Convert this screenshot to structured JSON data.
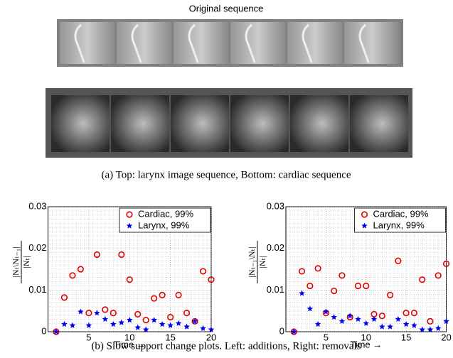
{
  "header": {
    "title": "Original sequence"
  },
  "caption_a": "(a) Top: larynx image sequence, Bottom: cardiac sequence",
  "caption_b": "(b) Slow support change plots. Left: additions, Right: removals",
  "chart_data": [
    {
      "type": "scatter",
      "xlabel": "Time →",
      "ylabel_numerator": "|Nₜ\\Nₜ₋₁|",
      "ylabel_denominator": "|Nₜ|",
      "x": [
        1,
        2,
        3,
        4,
        5,
        6,
        7,
        8,
        9,
        10,
        11,
        12,
        13,
        14,
        15,
        16,
        17,
        18,
        19,
        20
      ],
      "series": [
        {
          "name": "Cardiac, 99%",
          "color": "#e00000",
          "marker": "circle",
          "values": [
            0,
            0.0082,
            0.0135,
            0.015,
            0.0045,
            0.0185,
            0.0053,
            0.0045,
            0.0185,
            0.0125,
            0.0042,
            0.0028,
            0.008,
            0.0088,
            0.0035,
            0.0088,
            0.0045,
            0.0025,
            0.0145,
            0.0125
          ]
        },
        {
          "name": "Larynx, 99%",
          "color": "#0000ee",
          "marker": "star",
          "values": [
            0,
            0.0018,
            0.0015,
            0.0048,
            0.0015,
            0.0045,
            0.003,
            0.0018,
            0.0022,
            0.0028,
            0.001,
            0.0005,
            0.0028,
            0.0018,
            0.0015,
            0.002,
            0.0012,
            0.0025,
            0.0008,
            0.0005
          ]
        }
      ],
      "xlim": [
        0,
        20
      ],
      "xticks": [
        5,
        10,
        15,
        20
      ],
      "ylim": [
        0,
        0.03
      ],
      "yticks": [
        0,
        0.01,
        0.02,
        0.03
      ],
      "grid": true,
      "legend": "top-right"
    },
    {
      "type": "scatter",
      "xlabel": "Time →",
      "ylabel_numerator": "|Nₜ₋₁\\Nₜ|",
      "ylabel_denominator": "|Nₜ|",
      "x": [
        1,
        2,
        3,
        4,
        5,
        6,
        7,
        8,
        9,
        10,
        11,
        12,
        13,
        14,
        15,
        16,
        17,
        18,
        19,
        20
      ],
      "series": [
        {
          "name": "Cardiac, 99%",
          "color": "#e00000",
          "marker": "circle",
          "values": [
            0,
            0.0145,
            0.011,
            0.0152,
            0.0045,
            0.0098,
            0.0135,
            0.0035,
            0.011,
            0.011,
            0.0042,
            0.0038,
            0.0088,
            0.017,
            0.0045,
            0.0045,
            0.0125,
            0.0025,
            0.0135,
            0.0163
          ]
        },
        {
          "name": "Larynx, 99%",
          "color": "#0000ee",
          "marker": "star",
          "values": [
            0,
            0.0092,
            0.0055,
            0.0018,
            0.0048,
            0.0035,
            0.0025,
            0.0038,
            0.003,
            0.002,
            0.003,
            0.0012,
            0.0012,
            0.003,
            0.0018,
            0.0015,
            0.0005,
            0.0005,
            0.0008,
            0.0025
          ]
        }
      ],
      "xlim": [
        0,
        20
      ],
      "xticks": [
        5,
        10,
        15,
        20
      ],
      "ylim": [
        0,
        0.03
      ],
      "yticks": [
        0,
        0.01,
        0.02,
        0.03
      ],
      "grid": true,
      "legend": "top-right"
    }
  ]
}
